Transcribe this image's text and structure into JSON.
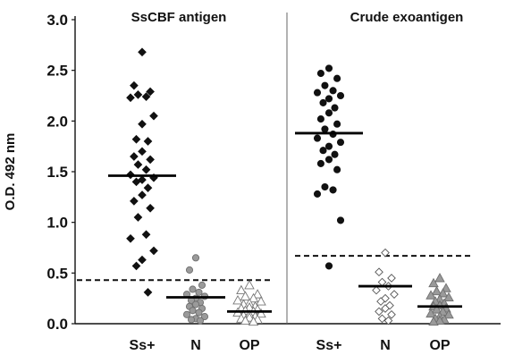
{
  "chart_data": {
    "type": "scatter",
    "ylabel": "O.D. 492 nm",
    "ylim": [
      0.0,
      3.0
    ],
    "yticks": [
      0.0,
      0.5,
      1.0,
      1.5,
      2.0,
      2.5,
      3.0
    ],
    "ytick_labels": [
      "0.0",
      "0.5",
      "1.0",
      "1.5",
      "2.0",
      "2.5",
      "3.0"
    ],
    "panels": [
      {
        "title": "SsCBF antigen",
        "categories": [
          "Ss+",
          "N",
          "OP"
        ],
        "cutoff": 0.43,
        "groups": [
          {
            "name": "Ss+",
            "marker": "diamond",
            "color": "#111111",
            "stroke": "#111111",
            "mean": 1.46,
            "values": [
              2.68,
              2.35,
              2.29,
              2.26,
              2.24,
              2.23,
              2.05,
              1.97,
              1.82,
              1.8,
              1.7,
              1.65,
              1.62,
              1.57,
              1.52,
              1.47,
              1.44,
              1.42,
              1.4,
              1.34,
              1.27,
              1.21,
              1.14,
              1.05,
              0.88,
              0.84,
              0.72,
              0.63,
              0.57,
              0.31
            ]
          },
          {
            "name": "N",
            "marker": "circle",
            "color": "#9a9a9a",
            "stroke": "#6f6f6f",
            "mean": 0.26,
            "values": [
              0.65,
              0.53,
              0.38,
              0.34,
              0.31,
              0.29,
              0.27,
              0.25,
              0.23,
              0.21,
              0.19,
              0.17,
              0.15,
              0.13,
              0.11,
              0.09,
              0.07,
              0.05,
              0.04,
              0.03
            ]
          },
          {
            "name": "OP",
            "marker": "triangle",
            "color": "#ffffff",
            "stroke": "#777777",
            "mean": 0.12,
            "values": [
              0.38,
              0.33,
              0.29,
              0.27,
              0.25,
              0.23,
              0.22,
              0.2,
              0.19,
              0.17,
              0.16,
              0.15,
              0.14,
              0.13,
              0.12,
              0.11,
              0.1,
              0.09,
              0.08,
              0.07,
              0.06,
              0.05,
              0.04,
              0.03,
              0.02
            ]
          }
        ]
      },
      {
        "title": "Crude exoantigen",
        "categories": [
          "Ss+",
          "N",
          "OP"
        ],
        "cutoff": 0.67,
        "groups": [
          {
            "name": "Ss+",
            "marker": "circle",
            "color": "#111111",
            "stroke": "#111111",
            "mean": 1.88,
            "values": [
              2.52,
              2.47,
              2.42,
              2.35,
              2.3,
              2.28,
              2.25,
              2.22,
              2.18,
              2.13,
              2.08,
              2.02,
              1.97,
              1.92,
              1.87,
              1.83,
              1.79,
              1.75,
              1.71,
              1.67,
              1.62,
              1.58,
              1.52,
              1.35,
              1.32,
              1.28,
              1.02,
              0.57
            ]
          },
          {
            "name": "N",
            "marker": "diamond",
            "color": "#ffffff",
            "stroke": "#555555",
            "mean": 0.37,
            "values": [
              0.7,
              0.51,
              0.45,
              0.41,
              0.37,
              0.33,
              0.29,
              0.25,
              0.22,
              0.18,
              0.15,
              0.12,
              0.09,
              0.05,
              0.03
            ]
          },
          {
            "name": "OP",
            "marker": "triangle",
            "color": "#9a9a9a",
            "stroke": "#6f6f6f",
            "mean": 0.17,
            "values": [
              0.45,
              0.4,
              0.35,
              0.32,
              0.3,
              0.28,
              0.26,
              0.24,
              0.22,
              0.2,
              0.18,
              0.17,
              0.15,
              0.14,
              0.12,
              0.1,
              0.09,
              0.07,
              0.05,
              0.04,
              0.03,
              0.02
            ]
          }
        ]
      }
    ],
    "colors": {
      "axis": "#111111",
      "cutoff": "#111111",
      "panel_divider": "#666666"
    },
    "grid": false,
    "legend": "none"
  }
}
